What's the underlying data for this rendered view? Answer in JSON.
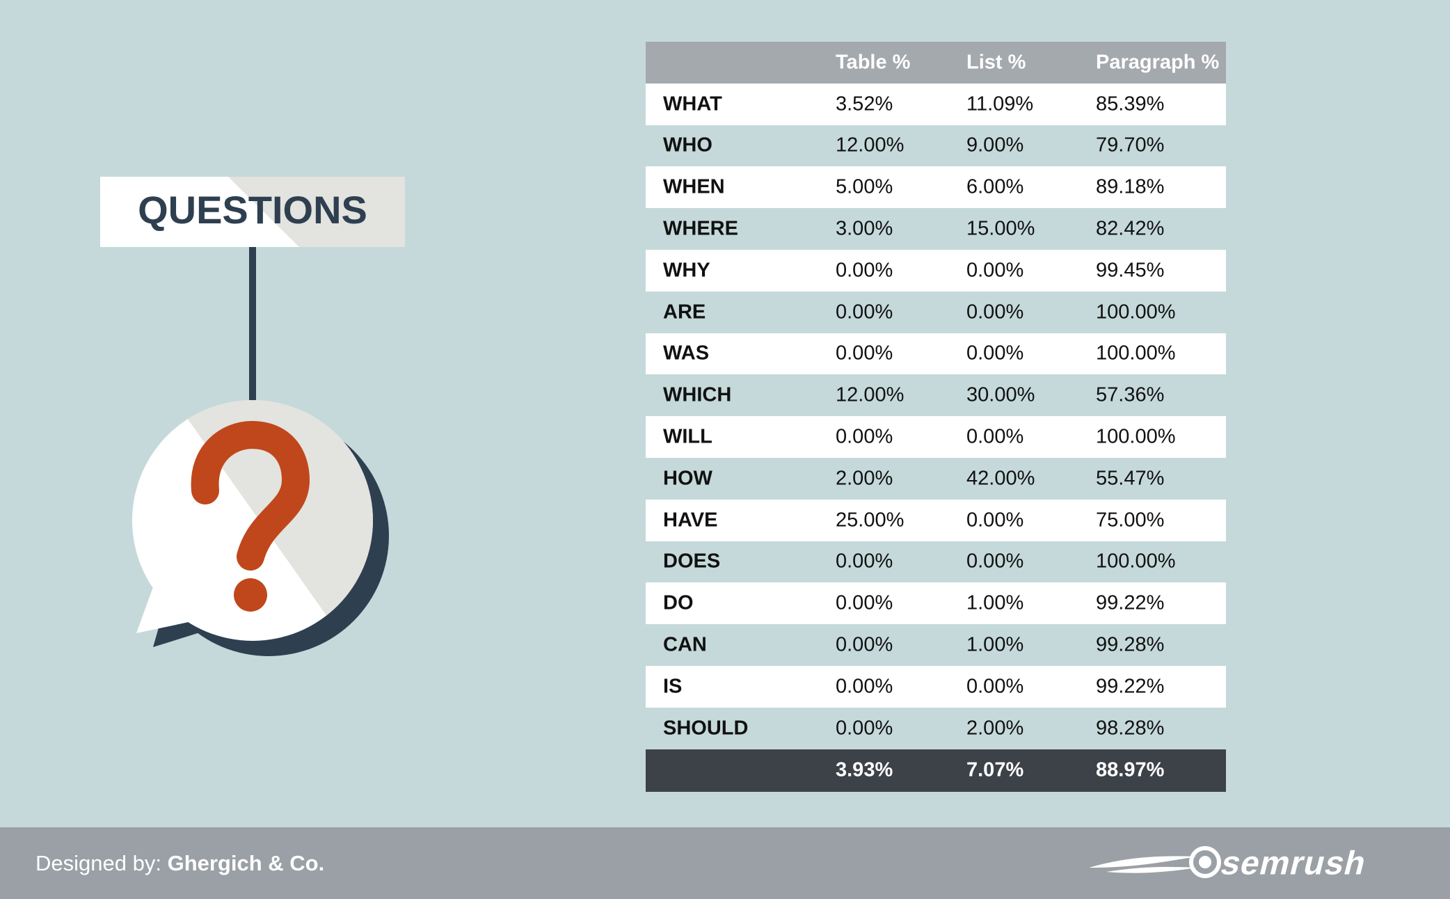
{
  "sign": {
    "title": "QUESTIONS"
  },
  "table": {
    "header": [
      "Table %",
      "List %",
      "Paragraph %"
    ],
    "rows": [
      [
        "WHAT",
        "3.52%",
        "11.09%",
        "85.39%"
      ],
      [
        "WHO",
        "12.00%",
        "9.00%",
        "79.70%"
      ],
      [
        "WHEN",
        "5.00%",
        "6.00%",
        "89.18%"
      ],
      [
        "WHERE",
        "3.00%",
        "15.00%",
        "82.42%"
      ],
      [
        "WHY",
        "0.00%",
        "0.00%",
        "99.45%"
      ],
      [
        "ARE",
        "0.00%",
        "0.00%",
        "100.00%"
      ],
      [
        "WAS",
        "0.00%",
        "0.00%",
        "100.00%"
      ],
      [
        "WHICH",
        "12.00%",
        "30.00%",
        "57.36%"
      ],
      [
        "WILL",
        "0.00%",
        "0.00%",
        "100.00%"
      ],
      [
        "HOW",
        "2.00%",
        "42.00%",
        "55.47%"
      ],
      [
        "HAVE",
        "25.00%",
        "0.00%",
        "75.00%"
      ],
      [
        "DOES",
        "0.00%",
        "0.00%",
        "100.00%"
      ],
      [
        "DO",
        "0.00%",
        "1.00%",
        "99.22%"
      ],
      [
        "CAN",
        "0.00%",
        "1.00%",
        "99.28%"
      ],
      [
        "IS",
        "0.00%",
        "0.00%",
        "99.22%"
      ],
      [
        "SHOULD",
        "0.00%",
        "2.00%",
        "98.28%"
      ]
    ],
    "total": [
      "3.93%",
      "7.07%",
      "88.97%"
    ]
  },
  "footer": {
    "designed_by": "Designed by:",
    "designer": "Ghergich & Co.",
    "brand": "semrush"
  }
}
